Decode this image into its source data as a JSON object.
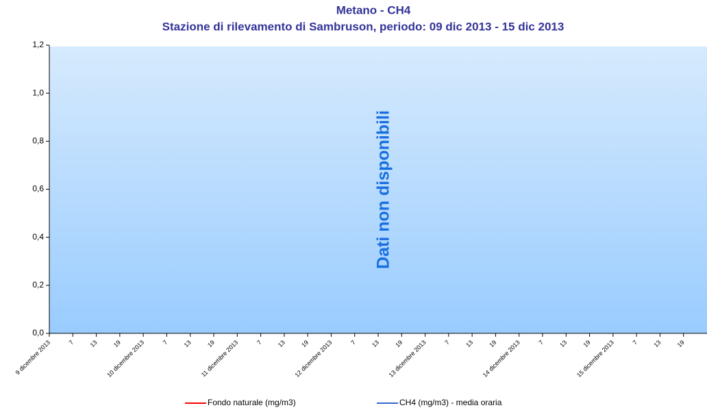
{
  "chart_data": {
    "type": "line",
    "title": "Metano - CH4",
    "subtitle": "Stazione di rilevamento di Sambruson, periodo: 09 dic 2013 - 15 dic 2013",
    "annotation": "Dati non disponibili",
    "categories": [
      "9 dicembre 2013",
      "7",
      "13",
      "19",
      "10 dicembre 2013",
      "7",
      "13",
      "19",
      "11 dicembre 2013",
      "7",
      "13",
      "19",
      "12 dicembre 2013",
      "7",
      "13",
      "19",
      "13 dicembre 2013",
      "7",
      "13",
      "19",
      "14 dicembre 2013",
      "7",
      "13",
      "19",
      "15 dicembre 2013",
      "7",
      "13",
      "19"
    ],
    "series": [
      {
        "name": "Fondo naturale  (mg/m3)",
        "color": "#ff0000",
        "values": [
          null,
          null,
          null,
          null,
          null,
          null,
          null,
          null,
          null,
          null,
          null,
          null,
          null,
          null,
          null,
          null,
          null,
          null,
          null,
          null,
          null,
          null,
          null,
          null,
          null,
          null,
          null,
          null
        ]
      },
      {
        "name": "CH4 (mg/m3)  - media oraria",
        "color": "#3366cc",
        "values": [
          null,
          null,
          null,
          null,
          null,
          null,
          null,
          null,
          null,
          null,
          null,
          null,
          null,
          null,
          null,
          null,
          null,
          null,
          null,
          null,
          null,
          null,
          null,
          null,
          null,
          null,
          null,
          null
        ]
      }
    ],
    "ylim": [
      0,
      1.2
    ],
    "yticks": [
      {
        "value": 0,
        "label": "0,0"
      },
      {
        "value": 0.2,
        "label": "0,2"
      },
      {
        "value": 0.4,
        "label": "0,4"
      },
      {
        "value": 0.6,
        "label": "0,6"
      },
      {
        "value": 0.8,
        "label": "0,8"
      },
      {
        "value": 1.0,
        "label": "1,0"
      },
      {
        "value": 1.2,
        "label": "1,2"
      }
    ],
    "grid": false,
    "legend": "bottom"
  }
}
